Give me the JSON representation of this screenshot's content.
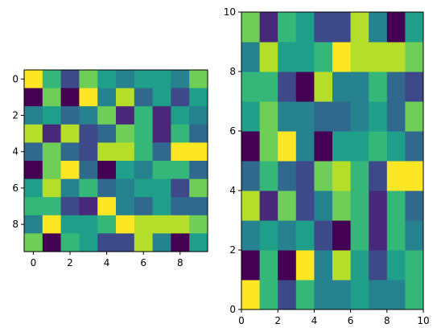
{
  "palette": [
    "#440154",
    "#482878",
    "#3e4989",
    "#31688e",
    "#26828e",
    "#1f9e89",
    "#35b779",
    "#6ece58",
    "#b5de2b",
    "#fde725"
  ],
  "chart_data": [
    {
      "type": "heatmap",
      "origin": "upper",
      "title": "",
      "xlabel": "",
      "ylabel": "",
      "xlim": [
        -0.5,
        9.5
      ],
      "ylim": [
        9.5,
        -0.5
      ],
      "xticks": [
        0,
        2,
        4,
        6,
        8
      ],
      "yticks": [
        0,
        2,
        4,
        6,
        8
      ],
      "xtick_labels": [
        "0",
        "2",
        "4",
        "6",
        "8"
      ],
      "ytick_labels": [
        "0",
        "2",
        "4",
        "6",
        "8"
      ],
      "grid": false,
      "values": [
        [
          9,
          6,
          2,
          7,
          5,
          4,
          5,
          5,
          4,
          7
        ],
        [
          0,
          7,
          0,
          9,
          4,
          8,
          3,
          5,
          2,
          5
        ],
        [
          4,
          5,
          3,
          4,
          7,
          1,
          6,
          1,
          5,
          4
        ],
        [
          8,
          1,
          8,
          2,
          3,
          7,
          6,
          1,
          6,
          3
        ],
        [
          3,
          7,
          3,
          2,
          8,
          8,
          6,
          3,
          9,
          9
        ],
        [
          0,
          7,
          9,
          3,
          0,
          5,
          4,
          6,
          6,
          3
        ],
        [
          5,
          8,
          4,
          6,
          3,
          4,
          5,
          5,
          2,
          7
        ],
        [
          6,
          6,
          2,
          1,
          9,
          4,
          3,
          5,
          3,
          3
        ],
        [
          4,
          9,
          5,
          5,
          6,
          9,
          8,
          8,
          8,
          7
        ],
        [
          7,
          0,
          6,
          5,
          2,
          2,
          8,
          4,
          0,
          5
        ]
      ]
    },
    {
      "type": "heatmap",
      "origin": "lower",
      "title": "",
      "xlabel": "",
      "ylabel": "",
      "xlim": [
        0,
        10
      ],
      "ylim": [
        0,
        10
      ],
      "xticks": [
        0,
        2,
        4,
        6,
        8,
        10
      ],
      "yticks": [
        0,
        2,
        4,
        6,
        8,
        10
      ],
      "xtick_labels": [
        "0",
        "2",
        "4",
        "6",
        "8",
        "10"
      ],
      "ytick_labels": [
        "0",
        "2",
        "4",
        "6",
        "8",
        "10"
      ],
      "grid": false,
      "values": [
        [
          9,
          6,
          2,
          6,
          4,
          4,
          5,
          4,
          4,
          6
        ],
        [
          0,
          6,
          0,
          9,
          4,
          8,
          5,
          2,
          5,
          6
        ],
        [
          4,
          5,
          4,
          5,
          2,
          0,
          6,
          1,
          6,
          4
        ],
        [
          8,
          1,
          7,
          2,
          4,
          7,
          6,
          1,
          6,
          3
        ],
        [
          3,
          6,
          3,
          2,
          7,
          8,
          6,
          2,
          9,
          9
        ],
        [
          0,
          7,
          9,
          4,
          0,
          5,
          5,
          6,
          5,
          3
        ],
        [
          5,
          7,
          4,
          4,
          3,
          3,
          4,
          5,
          3,
          7
        ],
        [
          6,
          6,
          2,
          0,
          8,
          4,
          4,
          6,
          3,
          2
        ],
        [
          4,
          8,
          5,
          5,
          6,
          9,
          8,
          8,
          8,
          7
        ],
        [
          7,
          1,
          6,
          5,
          2,
          2,
          8,
          4,
          0,
          5
        ]
      ]
    }
  ]
}
